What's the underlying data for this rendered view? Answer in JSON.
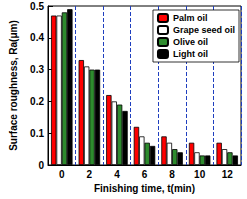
{
  "chart_data": {
    "type": "bar",
    "x_label": "Finishing time, t(min)",
    "y_label": "Surface roughness, Ra(μm)",
    "categories": [
      "0",
      "2",
      "4",
      "6",
      "8",
      "10",
      "12"
    ],
    "series": [
      {
        "name": "Palm oil",
        "color": "#ff0000",
        "values": [
          0.47,
          0.33,
          0.22,
          0.12,
          0.09,
          0.07,
          0.07
        ]
      },
      {
        "name": "Grape seed oil",
        "color": "#ffffff",
        "values": [
          0.47,
          0.31,
          0.2,
          0.09,
          0.07,
          0.04,
          0.05
        ]
      },
      {
        "name": "Olive oil",
        "color": "#2e8b2e",
        "values": [
          0.48,
          0.3,
          0.19,
          0.07,
          0.05,
          0.03,
          0.04
        ]
      },
      {
        "name": "Light oil",
        "color": "#000000",
        "values": [
          0.49,
          0.3,
          0.17,
          0.06,
          0.04,
          0.03,
          0.03
        ]
      }
    ],
    "ylim": [
      0,
      0.5
    ],
    "yticks": [
      0,
      0.1,
      0.2,
      0.3,
      0.4,
      0.5
    ],
    "grid": true,
    "legend": "upper right"
  }
}
